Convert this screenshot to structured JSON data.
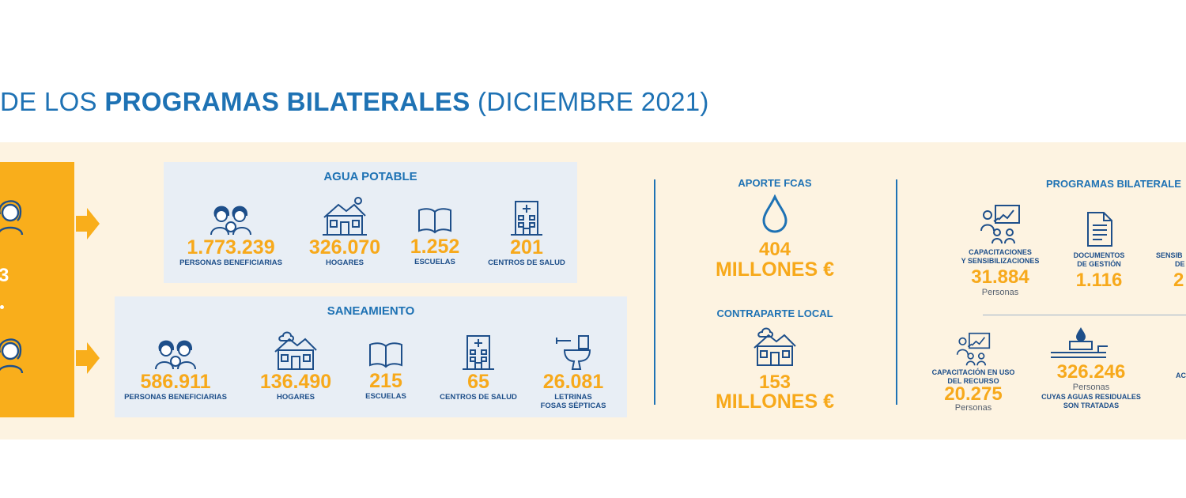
{
  "title": {
    "prefix": "DE LOS ",
    "bold": "PROGRAMAS BILATERALES",
    "suffix": " (DICIEMBRE 2021)"
  },
  "left_column": {
    "partial_number": "3"
  },
  "agua_potable": {
    "title": "AGUA POTABLE",
    "stats": [
      {
        "value": "1.773.239",
        "label": "PERSONAS BENEFICIARIAS",
        "icon": "people-icon"
      },
      {
        "value": "326.070",
        "label": "HOGARES",
        "icon": "house-icon"
      },
      {
        "value": "1.252",
        "label": "ESCUELAS",
        "icon": "book-icon"
      },
      {
        "value": "201",
        "label": "CENTROS DE SALUD",
        "icon": "hospital-icon"
      }
    ]
  },
  "saneamiento": {
    "title": "SANEAMIENTO",
    "stats": [
      {
        "value": "586.911",
        "label": "PERSONAS BENEFICIARIAS",
        "icon": "people-icon"
      },
      {
        "value": "136.490",
        "label": "HOGARES",
        "icon": "house-icon"
      },
      {
        "value": "215",
        "label": "ESCUELAS",
        "icon": "book-icon"
      },
      {
        "value": "65",
        "label": "CENTROS DE SALUD",
        "icon": "hospital-icon"
      },
      {
        "value": "26.081",
        "label": "LETRINAS",
        "label2": "FOSAS SÉPTICAS",
        "icon": "toilet-icon"
      }
    ]
  },
  "aporte": {
    "title": "APORTE FCAS",
    "value": "404",
    "unit": "MILLONES €",
    "icon": "water-drop-icon"
  },
  "contraparte": {
    "title": "CONTRAPARTE LOCAL",
    "value": "153",
    "unit": "MILLONES €",
    "icon": "house-icon"
  },
  "bilaterales": {
    "title": "PROGRAMAS BILATERALE",
    "capacitaciones": {
      "label1": "CAPACITACIONES",
      "label2": "Y SENSIBILIZACIONES",
      "value": "31.884",
      "sub": "Personas"
    },
    "documentos": {
      "label1": "DOCUMENTOS",
      "label2": "DE GESTIÓN",
      "value": "1.116"
    },
    "sensib": {
      "label1": "SENSIB",
      "label2": "DE",
      "value": "2"
    },
    "capacitacion_uso": {
      "label1": "CAPACITACIÓN EN USO",
      "label2": "DEL RECURSO",
      "value": "20.275",
      "sub": "Personas"
    },
    "aguas": {
      "value": "326.246",
      "sub": "Personas",
      "label1": "CUYAS AGUAS RESIDUALES",
      "label2": "SON TRATADAS"
    },
    "partial_ac": "AC"
  },
  "colors": {
    "blue": "#1e72b4",
    "orange": "#f7a91b",
    "band": "#fdf3e1",
    "box": "#e8eef5"
  }
}
